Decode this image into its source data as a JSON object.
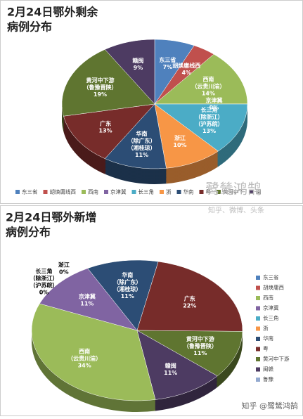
{
  "chart_data": [
    {
      "type": "pie",
      "title": [
        "2月24日鄂外剩余",
        "病例分布"
      ],
      "categories": [
        [
          "东三省"
        ],
        [
          "胡焕庸线西"
        ],
        [
          "西南",
          "（云贵川渝）"
        ],
        [
          "京津冀"
        ],
        [
          "长三角",
          "（除浙江）",
          "（沪苏皖）"
        ],
        [
          "浙江"
        ],
        [
          "华南",
          "（除广东）",
          "（湘桂琼）"
        ],
        [
          "广东"
        ],
        [
          "黄河中下游",
          "（鲁豫晋陕）"
        ],
        [
          "赣闽"
        ]
      ],
      "values": [
        7,
        4,
        14,
        0,
        13,
        10,
        11,
        13,
        19,
        9
      ],
      "value_labels": [
        "7%",
        "4%",
        "14%",
        "0%",
        "13%",
        "10%",
        "11%",
        "13%",
        "19%",
        "9%"
      ],
      "colors": [
        "#4f81bd",
        "#c0504d",
        "#9bbb59",
        "#8064a2",
        "#4bacc6",
        "#f79646",
        "#2c4d75",
        "#772c2a",
        "#5f7530",
        "#4d3b62"
      ],
      "legend": [
        {
          "name": "东三省",
          "color": "#4f81bd"
        },
        {
          "name": "胡焕庸线西",
          "color": "#c0504d"
        },
        {
          "name": "西南",
          "color": "#9bbb59"
        },
        {
          "name": "京津冀",
          "color": "#8064a2"
        },
        {
          "name": "长三角",
          "color": "#4bacc6"
        },
        {
          "name": "浙",
          "color": "#f79646"
        },
        {
          "name": "华南",
          "color": "#2c4d75"
        },
        {
          "name": "粤",
          "color": "#772c2a"
        },
        {
          "name": "黄河中下",
          "color": "#5f7530"
        },
        {
          "name": "闽",
          "color": "#4d3b62"
        }
      ],
      "watermarks": [
        "鹭鸶鸿鹄",
        "知乎、微博、头条"
      ]
    },
    {
      "type": "pie",
      "title": [
        "2月24日鄂外新增",
        "病例分布"
      ],
      "categories": [
        [
          "长三角",
          "（除浙江）",
          "（沪苏皖）"
        ],
        [
          "浙江"
        ],
        [
          "华南",
          "（除广东）",
          "（湘桂琼）"
        ],
        [
          "广东"
        ],
        [
          "黄河中下游",
          "（鲁豫晋陕）"
        ],
        [
          "赣闽"
        ],
        [
          "西南",
          "（云贵川渝）"
        ],
        [
          "京津冀"
        ]
      ],
      "values": [
        0,
        0,
        11,
        22,
        11,
        11,
        34,
        11
      ],
      "value_labels": [
        "0%",
        "0%",
        "11%",
        "22%",
        "11%",
        "11%",
        "34%",
        "11%"
      ],
      "colors": [
        "#4bacc6",
        "#f79646",
        "#2c4d75",
        "#772c2a",
        "#5f7530",
        "#4d3b62",
        "#9bbb59",
        "#8064a2"
      ],
      "legend": [
        {
          "name": "东三省",
          "color": "#4f81bd"
        },
        {
          "name": "胡焕庸西",
          "color": "#c0504d"
        },
        {
          "name": "西南",
          "color": "#9bbb59"
        },
        {
          "name": "京津冀",
          "color": "#8064a2"
        },
        {
          "name": "长三角",
          "color": "#4bacc6"
        },
        {
          "name": "浙",
          "color": "#f79646"
        },
        {
          "name": "华南",
          "color": "#2c4d75"
        },
        {
          "name": "粤",
          "color": "#772c2a"
        },
        {
          "name": "黄河中下游",
          "color": "#5f7530"
        },
        {
          "name": "闽赣",
          "color": "#4d3b62"
        },
        {
          "name": "鲁豫",
          "color": "#93a9cf"
        }
      ],
      "watermarks": [
        "知乎 @鹭鸶鸿鹄"
      ]
    }
  ]
}
